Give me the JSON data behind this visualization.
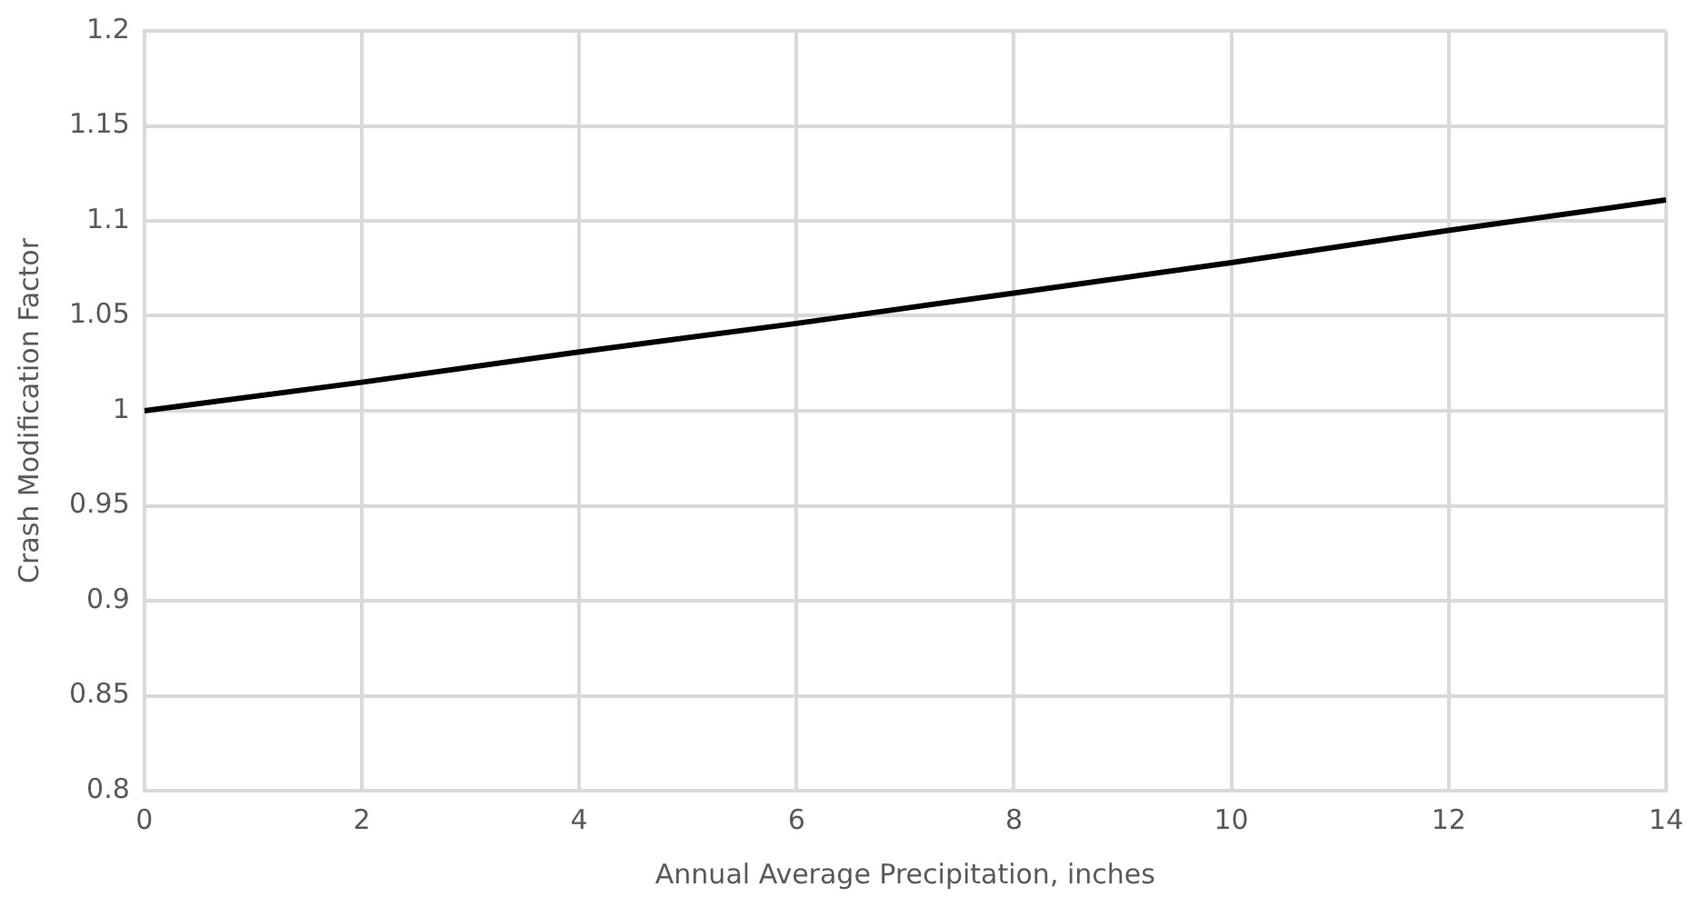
{
  "chart_data": {
    "type": "line",
    "xlabel": "Annual Average Precipitation, inches",
    "ylabel": "Crash Modification Factor",
    "x": [
      0,
      2,
      4,
      6,
      8,
      10,
      12,
      14
    ],
    "series": [
      {
        "color": "#000000",
        "values": [
          1.0,
          1.015,
          1.031,
          1.046,
          1.062,
          1.078,
          1.095,
          1.111
        ]
      }
    ],
    "xlim": [
      0,
      14
    ],
    "xticks": [
      0,
      2,
      4,
      6,
      8,
      10,
      12,
      14
    ],
    "ylim": [
      0.8,
      1.2
    ],
    "yticks": [
      0.8,
      0.85,
      0.9,
      0.95,
      1,
      1.05,
      1.1,
      1.15,
      1.2
    ],
    "grid": true,
    "legend": false,
    "marker": "none",
    "line_style": "solid"
  }
}
